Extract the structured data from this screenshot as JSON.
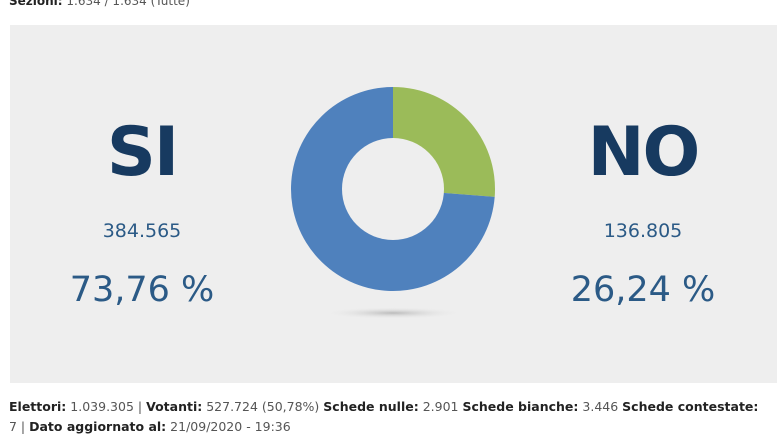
{
  "header": {
    "sezioni_label": "Sezioni:",
    "sezioni_value": "1.634 / 1.634 (Tutte)"
  },
  "chart_data": {
    "type": "pie",
    "donut": true,
    "categories": [
      "SI",
      "NO"
    ],
    "values": [
      384565,
      136805
    ],
    "percent_labels": [
      "73,76 %",
      "26,24 %"
    ],
    "value_labels": [
      "384.565",
      "136.805"
    ],
    "colors": [
      "#4f81bd",
      "#9bbb59"
    ]
  },
  "footer": {
    "elettori_label": "Elettori:",
    "elettori": "1.039.305 |",
    "votanti_label": "Votanti:",
    "votanti": "527.724 (50,78%)",
    "nulle_label": "Schede nulle:",
    "nulle": "2.901",
    "bianche_label": "Schede bianche:",
    "bianche": "3.446",
    "contestate_label": "Schede contestate:",
    "contestate": "7 |",
    "dato_label": "Dato aggiornato al:",
    "dato": "21/09/2020 - 19:36"
  }
}
